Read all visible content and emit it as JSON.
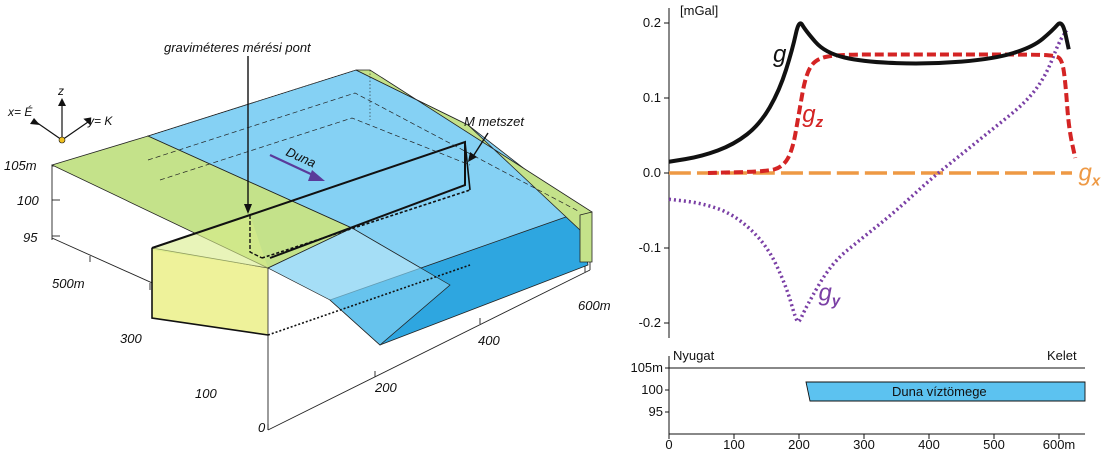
{
  "colors": {
    "water": "#5cc2f0",
    "water_side": "#2ea6e0",
    "bank": "#c4e28a",
    "bank_front": "#eef29a",
    "g": "#111111",
    "gz": "#d42424",
    "gx": "#ee9944",
    "gy": "#7a3fa5",
    "arrow": "#5a3a9a"
  },
  "block": {
    "point_label": "graviméteres mérési pont",
    "section_label": "M metszet",
    "river_label": "Duna",
    "axis_x_label": "x= É",
    "axis_y_label": "y= K",
    "axis_z_label": "z",
    "z_ticks": [
      "105m",
      "100",
      "95"
    ],
    "x_ticks": [
      "500m",
      "300",
      "100",
      "0"
    ],
    "y_ticks": [
      "200",
      "400",
      "600m"
    ]
  },
  "profile": {
    "left_label": "Nyugat",
    "right_label": "Kelet",
    "water_label": "Duna víztömege",
    "y_ticks": [
      "105m",
      "100",
      "95"
    ],
    "x_ticks": [
      "0",
      "100",
      "200",
      "300",
      "400",
      "500",
      "600m"
    ]
  },
  "chart_data": {
    "type": "line",
    "unit_label": "[mGal]",
    "ylim": [
      -0.22,
      0.22
    ],
    "xlim": [
      0,
      620
    ],
    "y_ticks": [
      0.2,
      0.1,
      0.0,
      -0.1,
      -0.2
    ],
    "y_tick_labels": [
      "0.2",
      "0.1",
      "0.0",
      "-0.1",
      "-0.2"
    ],
    "series": [
      {
        "name": "g",
        "style": "solid",
        "x": [
          0,
          50,
          100,
          140,
          170,
          190,
          200,
          210,
          240,
          300,
          400,
          500,
          560,
          590,
          605,
          615
        ],
        "y": [
          0.015,
          0.022,
          0.038,
          0.065,
          0.11,
          0.165,
          0.205,
          0.19,
          0.16,
          0.148,
          0.145,
          0.152,
          0.168,
          0.19,
          0.205,
          0.165
        ]
      },
      {
        "name": "gz",
        "style": "dashed",
        "x": [
          60,
          150,
          175,
          190,
          200,
          210,
          225,
          260,
          350,
          450,
          550,
          595,
          605,
          610,
          615,
          625
        ],
        "y": [
          0.0,
          0.002,
          0.008,
          0.03,
          0.08,
          0.13,
          0.152,
          0.158,
          0.158,
          0.158,
          0.158,
          0.157,
          0.15,
          0.12,
          0.06,
          0.02
        ]
      },
      {
        "name": "gx",
        "style": "long-dash",
        "x": [
          0,
          620
        ],
        "y": [
          0.0,
          0.0
        ]
      },
      {
        "name": "gy",
        "style": "dotted",
        "x": [
          0,
          50,
          100,
          150,
          180,
          195,
          200,
          210,
          250,
          300,
          350,
          400,
          450,
          500,
          550,
          580,
          600,
          612
        ],
        "y": [
          -0.035,
          -0.04,
          -0.055,
          -0.095,
          -0.15,
          -0.195,
          -0.2,
          -0.18,
          -0.12,
          -0.085,
          -0.05,
          -0.01,
          0.025,
          0.06,
          0.095,
          0.13,
          0.175,
          0.19
        ]
      }
    ],
    "series_labels": [
      {
        "text": "g",
        "sub": "",
        "color": "#111111",
        "x": 160,
        "y": 0.148
      },
      {
        "text": "g",
        "sub": "z",
        "color": "#d42424",
        "x": 205,
        "y": 0.068
      },
      {
        "text": "g",
        "sub": "x",
        "color": "#ee9944",
        "x": 630,
        "y": -0.01
      },
      {
        "text": "g",
        "sub": "y",
        "color": "#7a3fa5",
        "x": 230,
        "y": -0.17
      }
    ]
  }
}
